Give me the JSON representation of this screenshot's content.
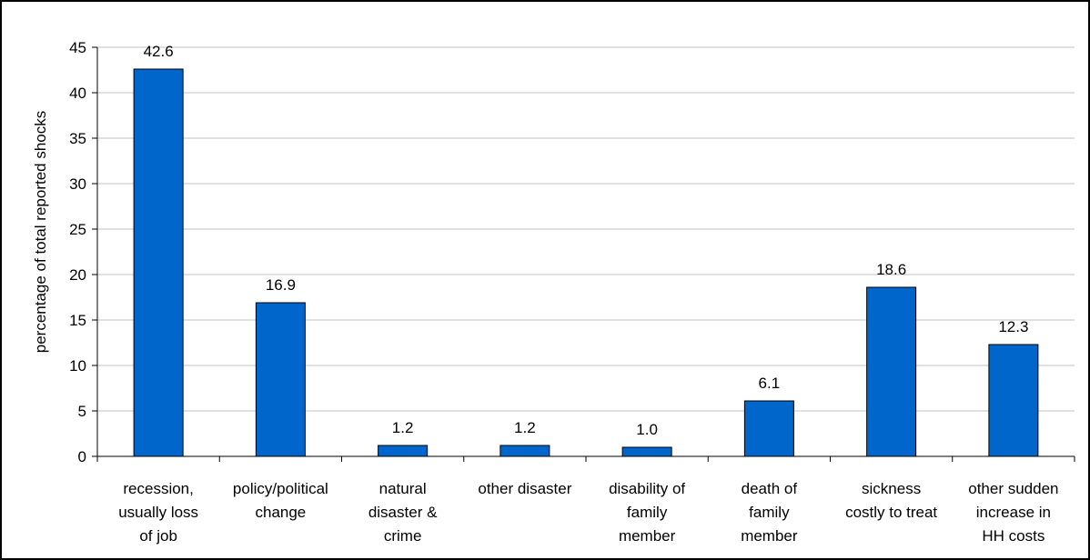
{
  "chart_data": {
    "type": "bar",
    "ylabel": "percentage of total reported shocks",
    "ylim": [
      0,
      45
    ],
    "yticks": [
      0,
      5,
      10,
      15,
      20,
      25,
      30,
      35,
      40,
      45
    ],
    "grid": true,
    "categories": [
      [
        "recession,",
        "usually loss",
        "of job"
      ],
      [
        "policy/political",
        "change"
      ],
      [
        "natural",
        "disaster &",
        "crime"
      ],
      [
        "other disaster"
      ],
      [
        "disability of",
        "family",
        "member"
      ],
      [
        "death of",
        "family",
        "member"
      ],
      [
        "sickness",
        "costly to treat"
      ],
      [
        "other sudden",
        "increase in",
        "HH costs"
      ]
    ],
    "values": [
      42.6,
      16.9,
      1.2,
      1.2,
      1.0,
      6.1,
      18.6,
      12.3
    ],
    "data_labels": [
      "42.6",
      "16.9",
      "1.2",
      "1.2",
      "1.0",
      "6.1",
      "18.6",
      "12.3"
    ],
    "bar_color": "#0066CC",
    "grid_color": "#C0C0C0"
  }
}
